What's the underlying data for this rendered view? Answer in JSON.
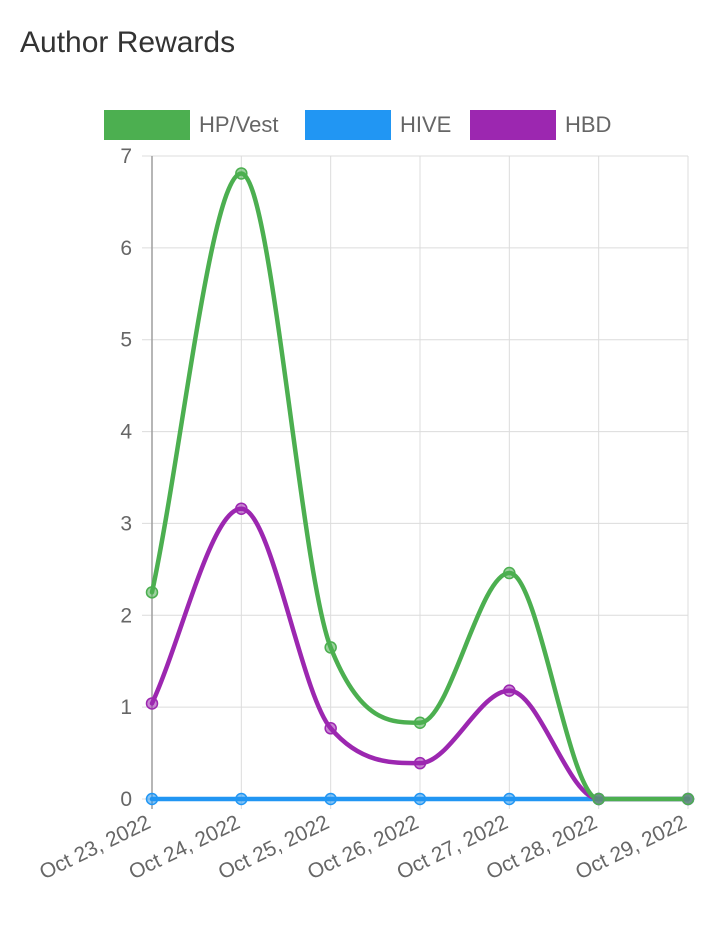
{
  "page_title": "Author Rewards",
  "chart_data": {
    "type": "line",
    "title": "Author Rewards",
    "xlabel": "",
    "ylabel": "",
    "categories": [
      "Oct 23, 2022",
      "Oct 24, 2022",
      "Oct 25, 2022",
      "Oct 26, 2022",
      "Oct 27, 2022",
      "Oct 28, 2022",
      "Oct 29, 2022"
    ],
    "ylim": [
      0,
      7
    ],
    "yticks": [
      "0",
      "1",
      "2",
      "3",
      "4",
      "5",
      "6",
      "7"
    ],
    "grid": true,
    "legend_position": "top",
    "series": [
      {
        "name": "HP/Vest",
        "color": "#4caf50",
        "values": [
          2.25,
          6.81,
          1.65,
          0.83,
          2.46,
          0,
          0
        ]
      },
      {
        "name": "HIVE",
        "color": "#2196f3",
        "values": [
          0,
          0,
          0,
          0,
          0,
          0,
          0
        ]
      },
      {
        "name": "HBD",
        "color": "#9c27b0",
        "values": [
          1.04,
          3.16,
          0.77,
          0.39,
          1.18,
          0,
          0
        ]
      }
    ]
  }
}
